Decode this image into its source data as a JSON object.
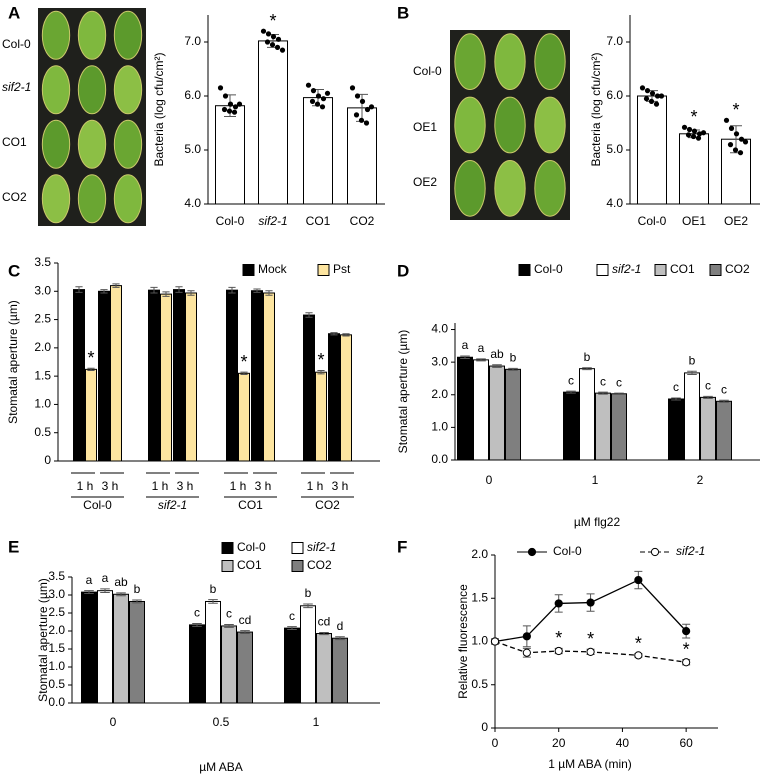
{
  "chart_data": [
    {
      "panel": "A",
      "type": "bar",
      "photo_labels": [
        "Col-0",
        "sif2-1",
        "CO1",
        "CO2"
      ],
      "ylabel": "Bacteria (log cfu/cm²)",
      "categories": [
        "Col-0",
        "sif2-1",
        "CO1",
        "CO2"
      ],
      "series": [
        {
          "color": "#ffffff",
          "values": [
            5.82,
            7.02,
            5.97,
            5.78
          ],
          "errors": [
            0.2,
            0.12,
            0.15,
            0.25
          ],
          "points": [
            [
              6.15,
              6.0,
              5.85,
              5.8,
              5.75,
              5.72,
              5.7,
              5.85
            ],
            [
              7.2,
              7.15,
              7.1,
              7.05,
              7.0,
              6.95,
              6.9,
              6.85
            ],
            [
              6.2,
              6.1,
              6.0,
              5.95,
              5.9,
              5.85,
              5.8,
              6.05
            ],
            [
              6.15,
              6.0,
              5.9,
              5.75,
              5.65,
              5.55,
              5.5,
              5.8
            ]
          ],
          "marks": [
            null,
            "*",
            null,
            null
          ]
        }
      ],
      "ylim": [
        4,
        7.5
      ],
      "yticks": [
        {
          "value": 4,
          "label": "4.0"
        },
        {
          "value": 5,
          "label": "5.0"
        },
        {
          "value": 6,
          "label": "6.0"
        },
        {
          "value": 7,
          "label": "7.0"
        }
      ]
    },
    {
      "panel": "B",
      "type": "bar",
      "photo_labels": [
        "Col-0",
        "OE1",
        "OE2"
      ],
      "ylabel": "Bacteria (log cfu/cm²)",
      "categories": [
        "Col-0",
        "OE1",
        "OE2"
      ],
      "series": [
        {
          "color": "#ffffff",
          "values": [
            6.0,
            5.3,
            5.2
          ],
          "errors": [
            0.1,
            0.07,
            0.25
          ],
          "points": [
            [
              6.15,
              6.1,
              6.05,
              6.0,
              5.95,
              5.9,
              5.85,
              6.0
            ],
            [
              5.42,
              5.38,
              5.35,
              5.3,
              5.28,
              5.25,
              5.22,
              5.32
            ],
            [
              5.55,
              5.4,
              5.3,
              5.2,
              5.1,
              5.0,
              4.95,
              5.15
            ]
          ],
          "marks": [
            null,
            "*",
            "*"
          ]
        }
      ],
      "ylim": [
        4,
        7.5
      ],
      "yticks": [
        {
          "value": 4,
          "label": "4.0"
        },
        {
          "value": 5,
          "label": "5.0"
        },
        {
          "value": 6,
          "label": "6.0"
        },
        {
          "value": 7,
          "label": "7.0"
        }
      ]
    },
    {
      "panel": "C",
      "type": "bar",
      "ylabel": "Stomatal aperture (µm)",
      "categories": [
        "1 h",
        "3 h",
        "1 h",
        "3 h",
        "1 h",
        "3 h",
        "1 h",
        "3 h"
      ],
      "groups": [
        "Col-0",
        "sif2-1",
        "CO1",
        "CO2"
      ],
      "series": [
        {
          "name": "Mock",
          "color": "#000000",
          "values": [
            3.03,
            3.0,
            3.02,
            3.03,
            3.02,
            3.01,
            2.58,
            2.25
          ],
          "errors": [
            0.05,
            0.03,
            0.05,
            0.05,
            0.05,
            0.03,
            0.04,
            0.02
          ]
        },
        {
          "name": "Pst",
          "color": "#fde5a0",
          "values": [
            1.62,
            3.1,
            2.95,
            2.97,
            1.55,
            2.97,
            1.57,
            2.23
          ],
          "errors": [
            0.02,
            0.03,
            0.04,
            0.04,
            0.02,
            0.04,
            0.03,
            0.02
          ],
          "marks": [
            "*",
            null,
            null,
            null,
            "*",
            null,
            "*",
            null
          ]
        }
      ],
      "ylim": [
        0,
        3.5
      ],
      "yticks": [
        0,
        0.5,
        {
          "value": 1,
          "label": "1.0"
        },
        {
          "value": 1.5,
          "label": "1.5"
        },
        {
          "value": 2,
          "label": "2.0"
        },
        {
          "value": 2.5,
          "label": "2.5"
        },
        {
          "value": 3,
          "label": "3.0"
        },
        {
          "value": 3.5,
          "label": "3.5"
        }
      ]
    },
    {
      "panel": "D",
      "type": "bar",
      "ylabel": "Stomatal aperture (µm)",
      "xlabel": "µM flg22",
      "categories": [
        "0",
        "1",
        "2"
      ],
      "series": [
        {
          "name": "Col-0",
          "color": "#000000",
          "values": [
            3.15,
            2.08,
            1.87
          ],
          "errors": [
            0.04,
            0.03,
            0.03
          ],
          "letters": [
            "a",
            "c",
            "c"
          ]
        },
        {
          "name": "sif2-1",
          "color": "#ffffff",
          "values": [
            3.07,
            2.8,
            2.67
          ],
          "errors": [
            0.03,
            0.03,
            0.05
          ],
          "letters": [
            "a",
            "b",
            "b"
          ]
        },
        {
          "name": "CO1",
          "color": "#bfbfbf",
          "values": [
            2.88,
            2.05,
            1.92
          ],
          "errors": [
            0.04,
            0.03,
            0.03
          ],
          "letters": [
            "ab",
            "c",
            "c"
          ]
        },
        {
          "name": "CO2",
          "color": "#7f7f7f",
          "values": [
            2.78,
            2.03,
            1.8
          ],
          "errors": [
            0.03,
            0.02,
            0.03
          ],
          "letters": [
            "b",
            "c",
            "c"
          ]
        }
      ],
      "ylim": [
        0,
        4.2
      ],
      "yticks": [
        {
          "value": 0,
          "label": "0.0"
        },
        {
          "value": 1,
          "label": "1.0"
        },
        {
          "value": 2,
          "label": "2.0"
        },
        {
          "value": 3,
          "label": "3.0"
        },
        {
          "value": 4,
          "label": "4.0"
        }
      ]
    },
    {
      "panel": "E",
      "type": "bar",
      "ylabel": "Stomatal aperture (µm)",
      "xlabel": "µM ABA",
      "categories": [
        "0",
        "0.5",
        "1"
      ],
      "series": [
        {
          "name": "Col-0",
          "color": "#000000",
          "values": [
            3.08,
            2.17,
            2.08
          ],
          "errors": [
            0.04,
            0.04,
            0.04
          ],
          "letters": [
            "a",
            "c",
            "c"
          ]
        },
        {
          "name": "sif2-1",
          "color": "#ffffff",
          "values": [
            3.12,
            2.82,
            2.7
          ],
          "errors": [
            0.05,
            0.05,
            0.05
          ],
          "letters": [
            "a",
            "b",
            "b"
          ]
        },
        {
          "name": "CO1",
          "color": "#bfbfbf",
          "values": [
            3.02,
            2.14,
            1.93
          ],
          "errors": [
            0.04,
            0.04,
            0.03
          ],
          "letters": [
            "ab",
            "c",
            "cd"
          ]
        },
        {
          "name": "CO2",
          "color": "#7f7f7f",
          "values": [
            2.82,
            1.97,
            1.8
          ],
          "errors": [
            0.04,
            0.04,
            0.04
          ],
          "letters": [
            "b",
            "cd",
            "d"
          ]
        }
      ],
      "ylim": [
        0,
        3.5
      ],
      "yticks": [
        {
          "value": 0,
          "label": "0.0"
        },
        {
          "value": 0.5,
          "label": "0.5"
        },
        {
          "value": 1,
          "label": "1.0"
        },
        {
          "value": 1.5,
          "label": "1.5"
        },
        {
          "value": 2,
          "label": "2.0"
        },
        {
          "value": 2.5,
          "label": "2.5"
        },
        {
          "value": 3,
          "label": "3.0"
        },
        {
          "value": 3.5,
          "label": "3.5"
        }
      ]
    },
    {
      "panel": "F",
      "type": "line",
      "ylabel": "Relative fluorescence",
      "xlabel": "1 µM ABA (min)",
      "x": [
        0,
        10,
        20,
        30,
        45,
        60
      ],
      "series": [
        {
          "name": "Col-0",
          "color": "#000000",
          "line_style": "solid",
          "marker_fill": "#000000",
          "values": [
            1.0,
            1.06,
            1.44,
            1.45,
            1.71,
            1.12
          ],
          "errors": [
            0.03,
            0.12,
            0.1,
            0.1,
            0.1,
            0.08
          ]
        },
        {
          "name": "sif2-1",
          "color": "#000000",
          "line_style": "dashed",
          "marker_fill": "#ffffff",
          "values": [
            1.0,
            0.87,
            0.89,
            0.88,
            0.84,
            0.76
          ],
          "errors": [
            0.03,
            0.05,
            0.03,
            0.03,
            0.02,
            0.03
          ],
          "marks": [
            null,
            null,
            "*",
            "*",
            "*",
            "*"
          ]
        }
      ],
      "xlim": [
        0,
        70
      ],
      "xticks": [
        0,
        20,
        40,
        60
      ],
      "ylim": [
        0,
        2
      ],
      "yticks": [
        0,
        0.5,
        {
          "value": 1,
          "label": "1.0"
        },
        {
          "value": 1.5,
          "label": "1.5"
        },
        {
          "value": 2,
          "label": "2.0"
        }
      ]
    }
  ]
}
